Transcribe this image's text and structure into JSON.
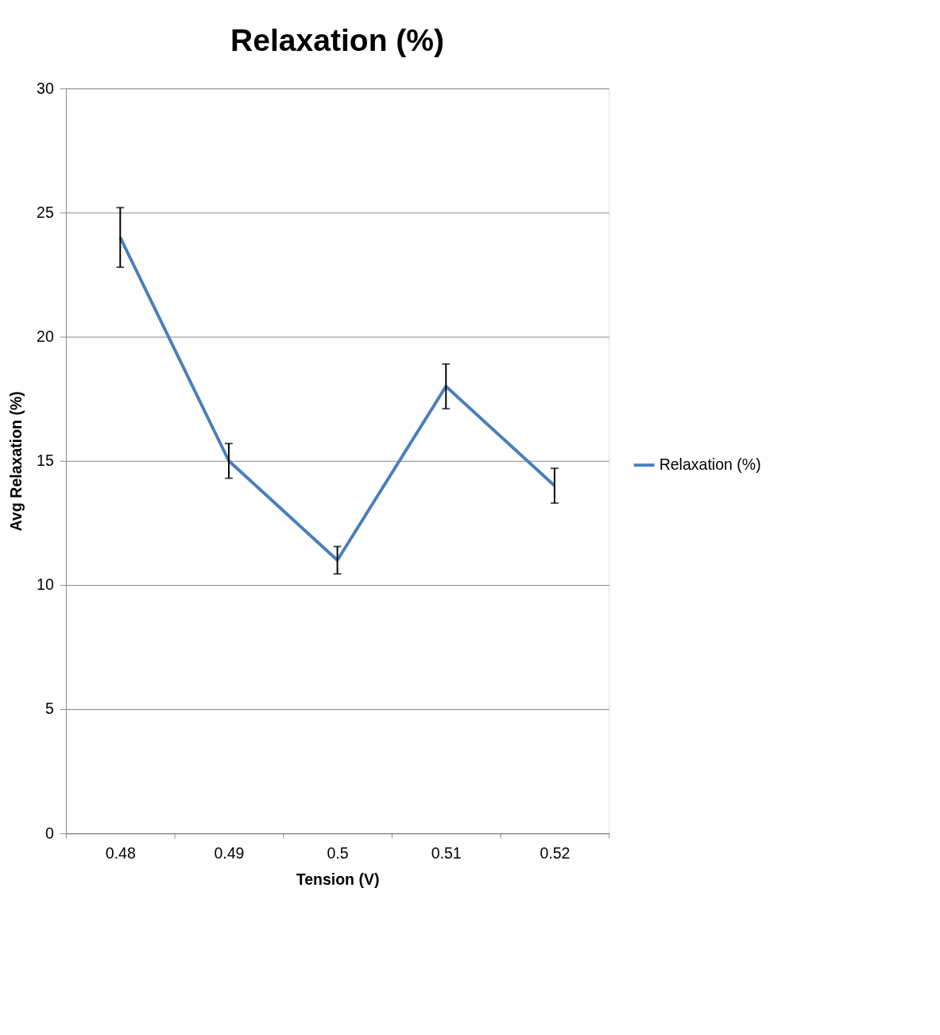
{
  "chart_data": {
    "type": "line",
    "title": "Relaxation (%)",
    "xlabel": "Tension (V)",
    "ylabel": "Avg Relaxation (%)",
    "categories": [
      "0.48",
      "0.49",
      "0.5",
      "0.51",
      "0.52"
    ],
    "series": [
      {
        "name": "Relaxation (%)",
        "color": "#4a7ebb",
        "values": [
          24,
          15,
          11,
          18,
          14
        ],
        "errors": [
          1.2,
          0.7,
          0.55,
          0.9,
          0.7
        ]
      }
    ],
    "ylim": [
      0,
      30
    ],
    "yticks": [
      0,
      5,
      10,
      15,
      20,
      25,
      30
    ],
    "grid": "y",
    "legend": "right",
    "marker": "none",
    "line_style": "solid"
  }
}
